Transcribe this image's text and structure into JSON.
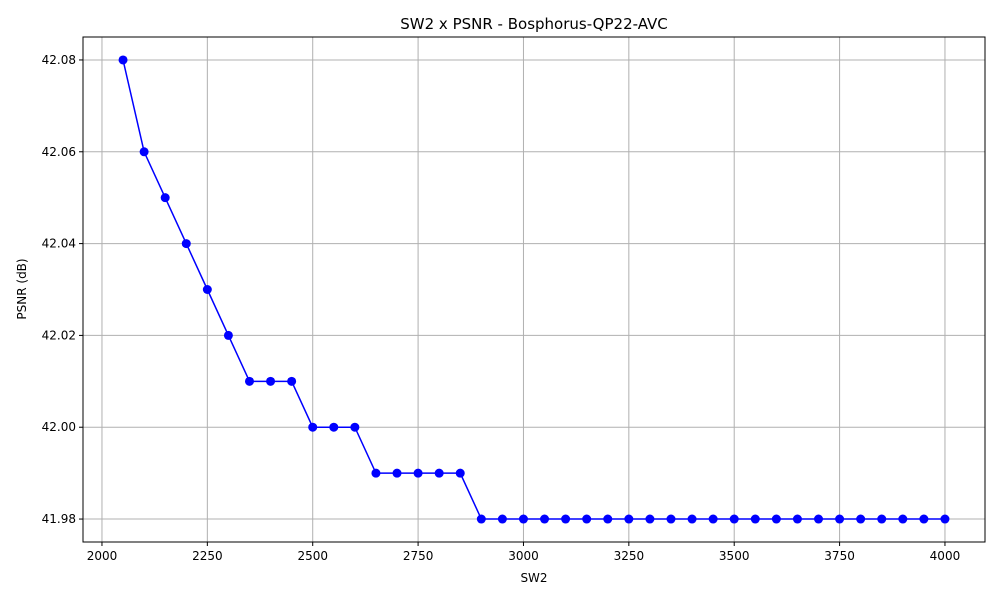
{
  "chart_data": {
    "type": "line",
    "title": "SW2 x PSNR - Bosphorus-QP22-AVC",
    "xlabel": "SW2",
    "ylabel": "PSNR (dB)",
    "xlim": [
      1955,
      4095
    ],
    "ylim": [
      41.975,
      42.085
    ],
    "x_ticks": [
      2000,
      2250,
      2500,
      2750,
      3000,
      3250,
      3500,
      3750,
      4000
    ],
    "x_tick_labels": [
      "2000",
      "2250",
      "2500",
      "2750",
      "3000",
      "3250",
      "3500",
      "3750",
      "4000"
    ],
    "y_ticks": [
      41.98,
      42.0,
      42.02,
      42.04,
      42.06,
      42.08
    ],
    "y_tick_labels": [
      "41.98",
      "42.00",
      "42.02",
      "42.04",
      "42.06",
      "42.08"
    ],
    "grid": true,
    "legend": null,
    "series": [
      {
        "color": "#0000ff",
        "marker": "circle",
        "x": [
          2050,
          2100,
          2150,
          2200,
          2250,
          2300,
          2350,
          2400,
          2450,
          2500,
          2550,
          2600,
          2650,
          2700,
          2750,
          2800,
          2850,
          2900,
          2950,
          3000,
          3050,
          3100,
          3150,
          3200,
          3250,
          3300,
          3350,
          3400,
          3450,
          3500,
          3550,
          3600,
          3650,
          3700,
          3750,
          3800,
          3850,
          3900,
          3950,
          4000
        ],
        "y": [
          42.08,
          42.06,
          42.05,
          42.04,
          42.03,
          42.02,
          42.01,
          42.01,
          42.01,
          42.0,
          42.0,
          42.0,
          41.99,
          41.99,
          41.99,
          41.99,
          41.99,
          41.98,
          41.98,
          41.98,
          41.98,
          41.98,
          41.98,
          41.98,
          41.98,
          41.98,
          41.98,
          41.98,
          41.98,
          41.98,
          41.98,
          41.98,
          41.98,
          41.98,
          41.98,
          41.98,
          41.98,
          41.98,
          41.98,
          41.98
        ]
      }
    ],
    "colors": {
      "grid": "#b0b0b0",
      "axes": "#000000",
      "background": "#ffffff"
    }
  }
}
